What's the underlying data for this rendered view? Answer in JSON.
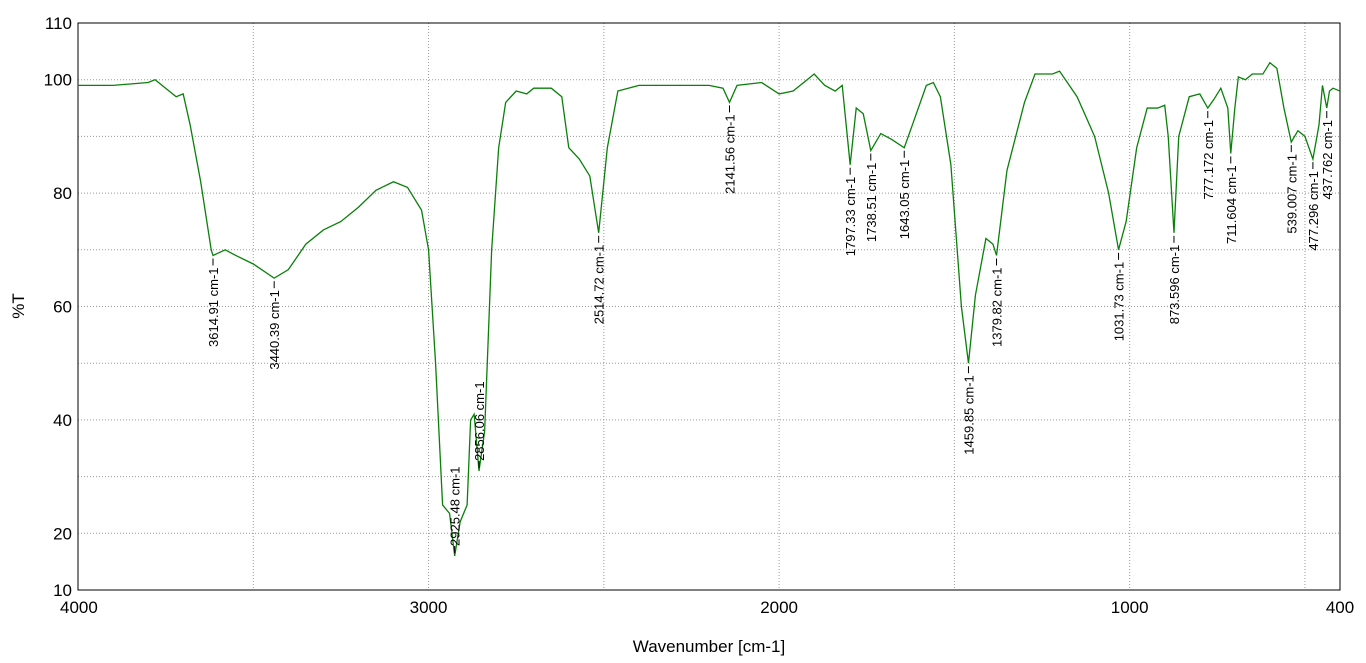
{
  "chart_data": {
    "type": "line",
    "xlabel": "Wavenumber [cm-1]",
    "ylabel": "%T",
    "color": "#0a800a",
    "xlim": [
      4000,
      400
    ],
    "ylim": [
      10,
      110
    ],
    "xticks": [
      4000,
      3000,
      2000,
      1000,
      400
    ],
    "yticks": [
      10,
      20,
      40,
      60,
      80,
      100,
      110
    ],
    "xgrid": [
      3500,
      2500,
      1500,
      500
    ],
    "ygrid": [
      30,
      50,
      70,
      90
    ],
    "x": [
      4000,
      3900,
      3800,
      3780,
      3750,
      3720,
      3700,
      3680,
      3650,
      3620,
      3614.91,
      3580,
      3550,
      3500,
      3440.39,
      3400,
      3350,
      3300,
      3250,
      3200,
      3150,
      3100,
      3060,
      3020,
      3000,
      2980,
      2960,
      2940,
      2925.48,
      2910,
      2890,
      2880,
      2870,
      2856.06,
      2840,
      2820,
      2800,
      2780,
      2750,
      2720,
      2700,
      2650,
      2620,
      2600,
      2570,
      2540,
      2514.72,
      2490,
      2460,
      2400,
      2300,
      2200,
      2160,
      2141.56,
      2120,
      2050,
      2000,
      1960,
      1920,
      1900,
      1870,
      1840,
      1820,
      1797.33,
      1780,
      1760,
      1738.51,
      1710,
      1680,
      1643.05,
      1620,
      1580,
      1560,
      1540,
      1510,
      1480,
      1459.85,
      1440,
      1410,
      1390,
      1379.82,
      1350,
      1300,
      1270,
      1220,
      1200,
      1150,
      1100,
      1060,
      1031.73,
      1010,
      980,
      950,
      920,
      900,
      890,
      873.596,
      860,
      830,
      800,
      777.172,
      760,
      740,
      720,
      711.604,
      700,
      690,
      670,
      650,
      620,
      600,
      580,
      560,
      539.007,
      520,
      500,
      477.296,
      460,
      450,
      437.762,
      430,
      420,
      400
    ],
    "values": [
      99,
      99,
      99.5,
      100,
      98.5,
      97,
      97.5,
      92,
      82,
      70,
      69,
      70,
      69,
      67.5,
      65,
      66.5,
      71,
      73.5,
      75,
      77.5,
      80.5,
      82,
      81,
      77,
      70,
      50,
      25,
      23.5,
      16,
      22,
      25,
      40,
      41,
      31,
      38,
      70,
      88,
      96,
      98,
      97.5,
      98.5,
      98.5,
      97,
      88,
      86,
      83,
      73,
      88,
      98,
      99,
      99,
      99,
      98.5,
      96,
      99,
      99.5,
      97.5,
      98,
      100,
      101,
      99,
      98,
      99,
      85,
      95,
      94,
      87.5,
      90.5,
      89.5,
      88,
      92,
      99,
      99.5,
      97,
      85,
      60,
      50,
      62,
      72,
      71,
      69,
      84,
      96,
      101,
      101,
      101.5,
      97,
      90,
      80,
      70,
      75,
      88,
      95,
      95,
      95.5,
      90,
      73,
      90,
      97,
      97.5,
      95,
      96.5,
      98.5,
      95,
      87,
      95,
      100.5,
      100,
      101,
      101,
      103,
      102,
      95,
      89,
      91,
      90,
      86,
      92,
      99,
      95,
      98,
      98.5,
      98
    ],
    "annotations": [
      {
        "text": "3614.91 cm-1",
        "x": 3614.91,
        "y": 69
      },
      {
        "text": "3440.39 cm-1",
        "x": 3440.39,
        "y": 65
      },
      {
        "text": "2925.48 cm-1",
        "x": 2925.48,
        "y": 16
      },
      {
        "text": "2856.06 cm-1",
        "x": 2856.06,
        "y": 31
      },
      {
        "text": "2514.72 cm-1",
        "x": 2514.72,
        "y": 73
      },
      {
        "text": "2141.56 cm-1",
        "x": 2141.56,
        "y": 96
      },
      {
        "text": "1797.33 cm-1",
        "x": 1797.33,
        "y": 85
      },
      {
        "text": "1738.51 cm-1",
        "x": 1738.51,
        "y": 87.5
      },
      {
        "text": "1643.05 cm-1",
        "x": 1643.05,
        "y": 88
      },
      {
        "text": "1459.85 cm-1",
        "x": 1459.85,
        "y": 50
      },
      {
        "text": "1379.82 cm-1",
        "x": 1379.82,
        "y": 69
      },
      {
        "text": "1031.73 cm-1",
        "x": 1031.73,
        "y": 70
      },
      {
        "text": "873.596 cm-1",
        "x": 873.596,
        "y": 73
      },
      {
        "text": "777.172 cm-1",
        "x": 777.172,
        "y": 95
      },
      {
        "text": "711.604 cm-1",
        "x": 711.604,
        "y": 87
      },
      {
        "text": "539.007 cm-1",
        "x": 539.007,
        "y": 89
      },
      {
        "text": "477.296 cm-1",
        "x": 477.296,
        "y": 86
      },
      {
        "text": "437.762 cm-1",
        "x": 437.762,
        "y": 95
      }
    ]
  }
}
